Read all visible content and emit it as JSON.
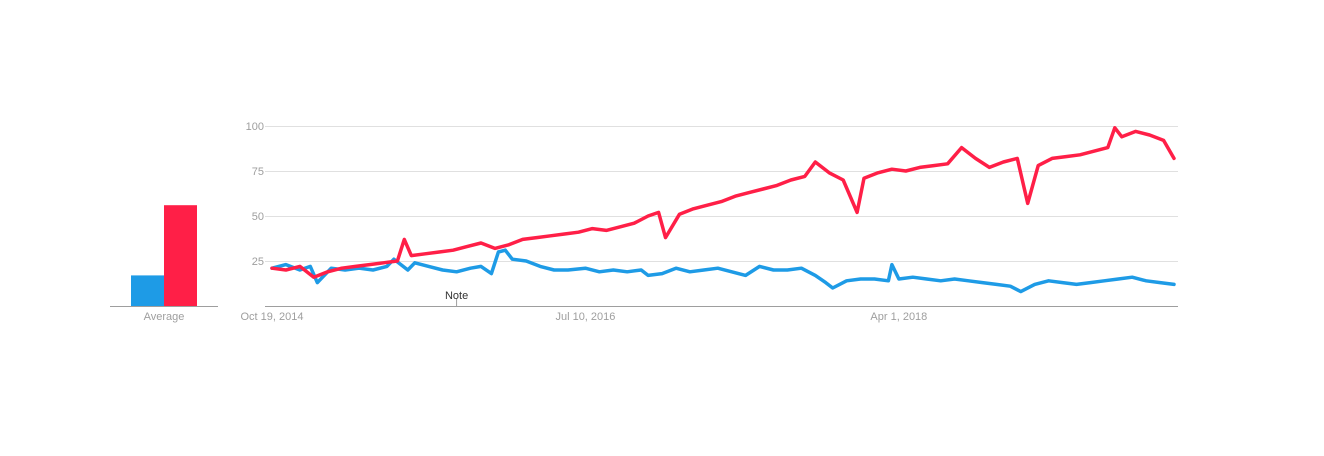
{
  "colors": {
    "series_blue": "#1e9be6",
    "series_red": "#ff1f47",
    "gridline": "#e0e0e0",
    "baseline": "#9e9e9e",
    "tick_text": "#9e9e9e",
    "annotation_text": "#333333"
  },
  "chart_data": [
    {
      "type": "bar",
      "categories": [
        "Average"
      ],
      "series": [
        {
          "values": [
            17
          ],
          "color": "#1e9be6"
        },
        {
          "values": [
            56
          ],
          "color": "#ff1f47"
        }
      ],
      "ylim": [
        0,
        100
      ],
      "tick_labels": [
        "Average"
      ]
    },
    {
      "type": "line",
      "x_range": [
        "2014-10-19",
        "2019-10-06"
      ],
      "ylim": [
        0,
        100
      ],
      "y_ticks": [
        25,
        50,
        75,
        100
      ],
      "x_tick_labels": [
        {
          "date": "2014-10-19",
          "label": "Oct 19, 2014"
        },
        {
          "date": "2016-07-10",
          "label": "Jul 10, 2016"
        },
        {
          "date": "2018-04-01",
          "label": "Apr 1, 2018"
        }
      ],
      "grid": true,
      "annotations": [
        {
          "date": "2015-10-25",
          "label": "Note"
        }
      ],
      "series": [
        {
          "color": "#1e9be6",
          "points": [
            [
              "2014-10-19",
              21
            ],
            [
              "2014-11-16",
              23
            ],
            [
              "2014-12-14",
              20
            ],
            [
              "2015-01-04",
              22
            ],
            [
              "2015-01-18",
              13
            ],
            [
              "2015-02-15",
              21
            ],
            [
              "2015-03-15",
              20
            ],
            [
              "2015-04-12",
              21
            ],
            [
              "2015-05-10",
              20
            ],
            [
              "2015-06-07",
              22
            ],
            [
              "2015-06-21",
              26
            ],
            [
              "2015-07-05",
              23
            ],
            [
              "2015-07-19",
              20
            ],
            [
              "2015-08-02",
              24
            ],
            [
              "2015-08-30",
              22
            ],
            [
              "2015-09-27",
              20
            ],
            [
              "2015-10-25",
              19
            ],
            [
              "2015-11-22",
              21
            ],
            [
              "2015-12-13",
              22
            ],
            [
              "2016-01-03",
              18
            ],
            [
              "2016-01-17",
              30
            ],
            [
              "2016-01-31",
              31
            ],
            [
              "2016-02-14",
              26
            ],
            [
              "2016-03-13",
              25
            ],
            [
              "2016-04-10",
              22
            ],
            [
              "2016-05-08",
              20
            ],
            [
              "2016-06-05",
              20
            ],
            [
              "2016-07-10",
              21
            ],
            [
              "2016-08-07",
              19
            ],
            [
              "2016-09-04",
              20
            ],
            [
              "2016-10-02",
              19
            ],
            [
              "2016-10-30",
              20
            ],
            [
              "2016-11-13",
              17
            ],
            [
              "2016-12-11",
              18
            ],
            [
              "2017-01-08",
              21
            ],
            [
              "2017-02-05",
              19
            ],
            [
              "2017-03-05",
              20
            ],
            [
              "2017-04-02",
              21
            ],
            [
              "2017-04-30",
              19
            ],
            [
              "2017-05-28",
              17
            ],
            [
              "2017-06-25",
              22
            ],
            [
              "2017-07-23",
              20
            ],
            [
              "2017-08-20",
              20
            ],
            [
              "2017-09-17",
              21
            ],
            [
              "2017-10-15",
              17
            ],
            [
              "2017-11-05",
              13
            ],
            [
              "2017-11-19",
              10
            ],
            [
              "2017-12-17",
              14
            ],
            [
              "2018-01-14",
              15
            ],
            [
              "2018-02-11",
              15
            ],
            [
              "2018-03-11",
              14
            ],
            [
              "2018-03-18",
              23
            ],
            [
              "2018-04-01",
              15
            ],
            [
              "2018-04-29",
              16
            ],
            [
              "2018-05-27",
              15
            ],
            [
              "2018-06-24",
              14
            ],
            [
              "2018-07-22",
              15
            ],
            [
              "2018-08-19",
              14
            ],
            [
              "2018-09-16",
              13
            ],
            [
              "2018-10-14",
              12
            ],
            [
              "2018-11-11",
              11
            ],
            [
              "2018-12-02",
              8
            ],
            [
              "2018-12-30",
              12
            ],
            [
              "2019-01-27",
              14
            ],
            [
              "2019-02-24",
              13
            ],
            [
              "2019-03-24",
              12
            ],
            [
              "2019-04-21",
              13
            ],
            [
              "2019-05-19",
              14
            ],
            [
              "2019-06-16",
              15
            ],
            [
              "2019-07-14",
              16
            ],
            [
              "2019-08-11",
              14
            ],
            [
              "2019-09-08",
              13
            ],
            [
              "2019-10-06",
              12
            ]
          ]
        },
        {
          "color": "#ff1f47",
          "points": [
            [
              "2014-10-19",
              21
            ],
            [
              "2014-11-16",
              20
            ],
            [
              "2014-12-14",
              22
            ],
            [
              "2015-01-11",
              16
            ],
            [
              "2015-02-08",
              19
            ],
            [
              "2015-03-08",
              21
            ],
            [
              "2015-04-05",
              22
            ],
            [
              "2015-05-03",
              23
            ],
            [
              "2015-05-31",
              24
            ],
            [
              "2015-06-28",
              25
            ],
            [
              "2015-07-12",
              37
            ],
            [
              "2015-07-26",
              28
            ],
            [
              "2015-08-23",
              29
            ],
            [
              "2015-09-20",
              30
            ],
            [
              "2015-10-18",
              31
            ],
            [
              "2015-11-15",
              33
            ],
            [
              "2015-12-13",
              35
            ],
            [
              "2016-01-10",
              32
            ],
            [
              "2016-02-07",
              34
            ],
            [
              "2016-03-06",
              37
            ],
            [
              "2016-04-03",
              38
            ],
            [
              "2016-05-01",
              39
            ],
            [
              "2016-05-29",
              40
            ],
            [
              "2016-06-26",
              41
            ],
            [
              "2016-07-24",
              43
            ],
            [
              "2016-08-21",
              42
            ],
            [
              "2016-09-18",
              44
            ],
            [
              "2016-10-16",
              46
            ],
            [
              "2016-11-13",
              50
            ],
            [
              "2016-12-04",
              52
            ],
            [
              "2016-12-18",
              38
            ],
            [
              "2017-01-15",
              51
            ],
            [
              "2017-02-12",
              54
            ],
            [
              "2017-03-12",
              56
            ],
            [
              "2017-04-09",
              58
            ],
            [
              "2017-05-07",
              61
            ],
            [
              "2017-06-04",
              63
            ],
            [
              "2017-07-02",
              65
            ],
            [
              "2017-07-30",
              67
            ],
            [
              "2017-08-27",
              70
            ],
            [
              "2017-09-24",
              72
            ],
            [
              "2017-10-15",
              80
            ],
            [
              "2017-11-12",
              74
            ],
            [
              "2017-12-10",
              70
            ],
            [
              "2018-01-07",
              52
            ],
            [
              "2018-01-21",
              71
            ],
            [
              "2018-02-18",
              74
            ],
            [
              "2018-03-18",
              76
            ],
            [
              "2018-04-15",
              75
            ],
            [
              "2018-05-13",
              77
            ],
            [
              "2018-06-10",
              78
            ],
            [
              "2018-07-08",
              79
            ],
            [
              "2018-08-05",
              88
            ],
            [
              "2018-09-02",
              82
            ],
            [
              "2018-09-30",
              77
            ],
            [
              "2018-10-28",
              80
            ],
            [
              "2018-11-25",
              82
            ],
            [
              "2018-12-16",
              57
            ],
            [
              "2019-01-06",
              78
            ],
            [
              "2019-02-03",
              82
            ],
            [
              "2019-03-03",
              83
            ],
            [
              "2019-03-31",
              84
            ],
            [
              "2019-04-28",
              86
            ],
            [
              "2019-05-26",
              88
            ],
            [
              "2019-06-09",
              99
            ],
            [
              "2019-06-23",
              94
            ],
            [
              "2019-07-21",
              97
            ],
            [
              "2019-08-18",
              95
            ],
            [
              "2019-09-15",
              92
            ],
            [
              "2019-10-06",
              82
            ]
          ]
        }
      ]
    }
  ]
}
